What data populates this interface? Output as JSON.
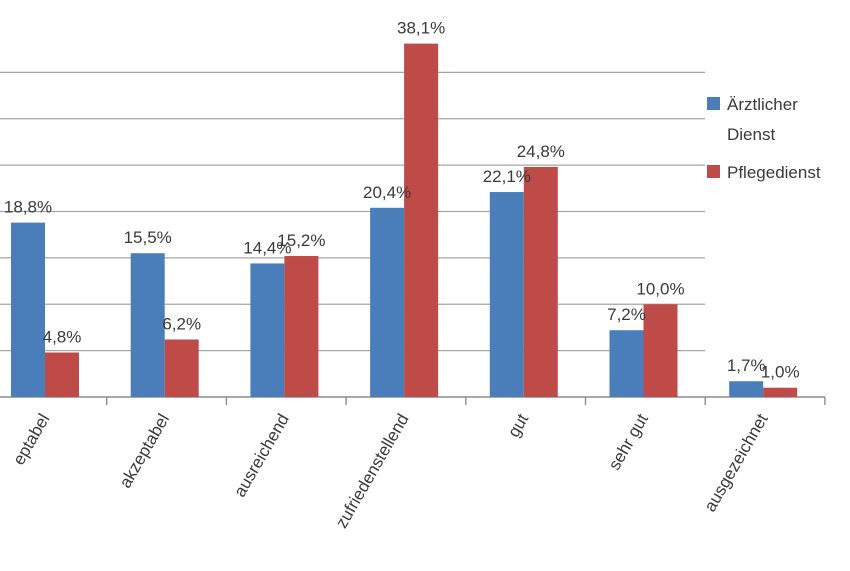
{
  "chart_data": {
    "type": "bar",
    "categories": [
      "nicht akzeptabel",
      "akzeptabel",
      "ausreichend",
      "zufriedenstellend",
      "gut",
      "sehr gut",
      "ausgezeichnet"
    ],
    "visible_category_text": [
      "eptabel",
      "akzeptabel",
      "ausreichend",
      "zufriedenstellend",
      "gut",
      "sehr gut",
      "ausgezeichnet"
    ],
    "series": [
      {
        "name": "Ärztlicher Dienst",
        "legend_lines": [
          "Ärztlicher",
          "Dienst"
        ],
        "color": "#4a7ebb",
        "values": [
          18.8,
          15.5,
          14.4,
          20.4,
          22.1,
          7.2,
          1.7
        ],
        "labels": [
          "18,8%",
          "15,5%",
          "14,4%",
          "20,4%",
          "22,1%",
          "7,2%",
          "1,7%"
        ]
      },
      {
        "name": "Pflegedienst",
        "legend_lines": [
          "Pflegedienst"
        ],
        "color": "#be4b48",
        "values": [
          4.8,
          6.2,
          15.2,
          38.1,
          24.8,
          10.0,
          1.0
        ],
        "labels": [
          "4,8%",
          "6,2%",
          "15,2%",
          "38,1%",
          "24,8%",
          "10,0%",
          "1,0%"
        ]
      }
    ],
    "title": "",
    "xlabel": "",
    "ylabel": "",
    "ylim": [
      0,
      40
    ],
    "grid": true,
    "legend_position": "right"
  }
}
